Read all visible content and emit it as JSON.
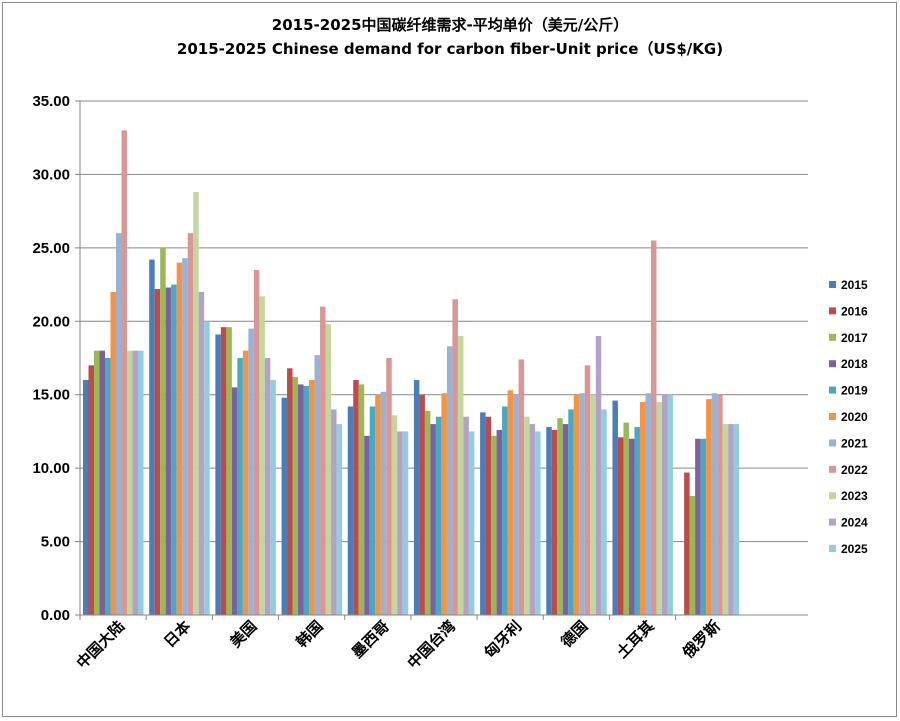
{
  "chart_data": {
    "type": "bar",
    "title": "2015-2025中国碳纤维需求-平均单价（美元/公斤）",
    "subtitle": "2015-2025 Chinese demand for carbon fiber-Unit price（US$/KG)",
    "categories": [
      "中国大陆",
      "日本",
      "美国",
      "韩国",
      "墨西哥",
      "中国台湾",
      "匈牙利",
      "德国",
      "土耳其",
      "俄罗斯"
    ],
    "ylim": [
      0,
      35
    ],
    "yticks": [
      "0.00",
      "5.00",
      "10.00",
      "15.00",
      "20.00",
      "25.00",
      "30.00",
      "35.00"
    ],
    "grid": true,
    "legend_position": "right",
    "series": [
      {
        "name": "2015",
        "color": "#4a7ebb",
        "values": [
          16.0,
          24.2,
          19.1,
          14.8,
          14.2,
          16.0,
          13.8,
          12.8,
          14.6,
          0
        ]
      },
      {
        "name": "2016",
        "color": "#be4b48",
        "values": [
          17.0,
          22.2,
          19.6,
          16.8,
          16.0,
          15.0,
          13.5,
          12.6,
          12.1,
          9.7
        ]
      },
      {
        "name": "2017",
        "color": "#98b954",
        "values": [
          18.0,
          25.0,
          19.6,
          16.2,
          15.7,
          13.9,
          12.2,
          13.4,
          13.1,
          8.1
        ]
      },
      {
        "name": "2018",
        "color": "#7d60a0",
        "values": [
          18.0,
          22.3,
          15.5,
          15.7,
          12.2,
          13.0,
          12.6,
          13.0,
          12.0,
          12.0
        ]
      },
      {
        "name": "2019",
        "color": "#46aac5",
        "values": [
          17.5,
          22.5,
          17.5,
          15.6,
          14.2,
          13.5,
          14.2,
          14.0,
          12.8,
          12.0
        ]
      },
      {
        "name": "2020",
        "color": "#f69240",
        "values": [
          22.0,
          24.0,
          18.0,
          16.0,
          15.0,
          15.1,
          15.3,
          15.0,
          14.5,
          14.7
        ]
      },
      {
        "name": "2021",
        "color": "#95b3d7",
        "values": [
          26.0,
          24.3,
          19.5,
          17.7,
          15.2,
          18.3,
          15.0,
          15.1,
          15.1,
          15.1
        ]
      },
      {
        "name": "2022",
        "color": "#d99694",
        "values": [
          33.0,
          26.0,
          23.5,
          21.0,
          17.5,
          21.5,
          17.4,
          17.0,
          25.5,
          15.0
        ]
      },
      {
        "name": "2023",
        "color": "#c3d69b",
        "values": [
          18.0,
          28.8,
          21.7,
          19.8,
          13.6,
          19.0,
          13.5,
          15.0,
          14.5,
          13.0
        ]
      },
      {
        "name": "2024",
        "color": "#b3a2c7",
        "values": [
          18.0,
          22.0,
          17.5,
          14.0,
          12.5,
          13.5,
          13.0,
          19.0,
          15.0,
          13.0
        ]
      },
      {
        "name": "2025",
        "color": "#93cddd",
        "values": [
          18.0,
          20.0,
          16.0,
          13.0,
          12.5,
          12.5,
          12.5,
          14.0,
          15.0,
          13.0
        ]
      }
    ]
  }
}
